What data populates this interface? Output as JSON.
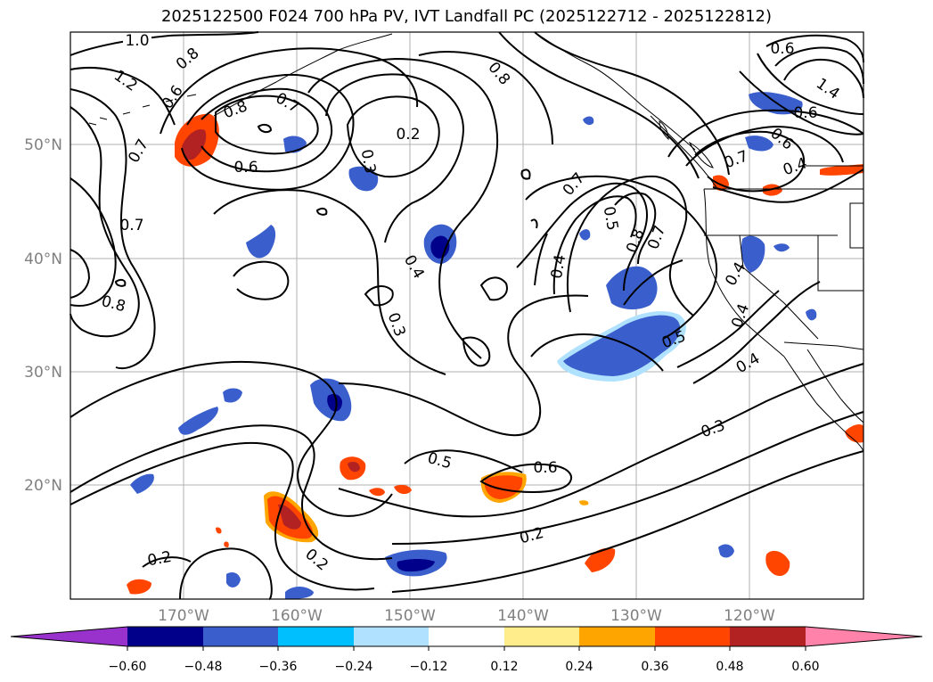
{
  "title": "2025122500 F024 700 hPa PV, IVT Landfall PC (2025122712 - 2025122812)",
  "lat_labels": [
    "50°N",
    "40°N",
    "30°N",
    "20°N"
  ],
  "lon_labels": [
    "170°W",
    "160°W",
    "150°W",
    "140°W",
    "130°W",
    "120°W"
  ],
  "contour_labels": [
    "1.0",
    "1.2",
    "0.8",
    "0.6",
    "0.7",
    "0.8",
    "0.6",
    "0.7",
    "0.7",
    "0.8",
    "0.2",
    "0.3",
    "0.8",
    "0.4",
    "0.3",
    "0.7",
    "0.4",
    "0.5",
    "0.8",
    "0.7",
    "0.6",
    "0.4",
    "0.5",
    "0.5",
    "0.3",
    "0.2",
    "0.2",
    "0.2",
    "0.6",
    "1.4",
    "0.6",
    "0.6",
    "0.7",
    "0.4",
    "0.4",
    "0.4"
  ],
  "colorbar": {
    "ticks": [
      "−0.60",
      "−0.48",
      "−0.36",
      "−0.24",
      "−0.12",
      "0.12",
      "0.24",
      "0.36",
      "0.48",
      "0.60"
    ],
    "colors": [
      "#9932cc",
      "#00008b",
      "#3a5fcd",
      "#00bfff",
      "#b0e2ff",
      "#ffffff",
      "#ffec8b",
      "#ffa500",
      "#ff4500",
      "#b22222",
      "#ff82ab"
    ]
  },
  "colors": {
    "contour": "#000000",
    "grid": "#b0b0b0",
    "tick_label": "#808080"
  }
}
